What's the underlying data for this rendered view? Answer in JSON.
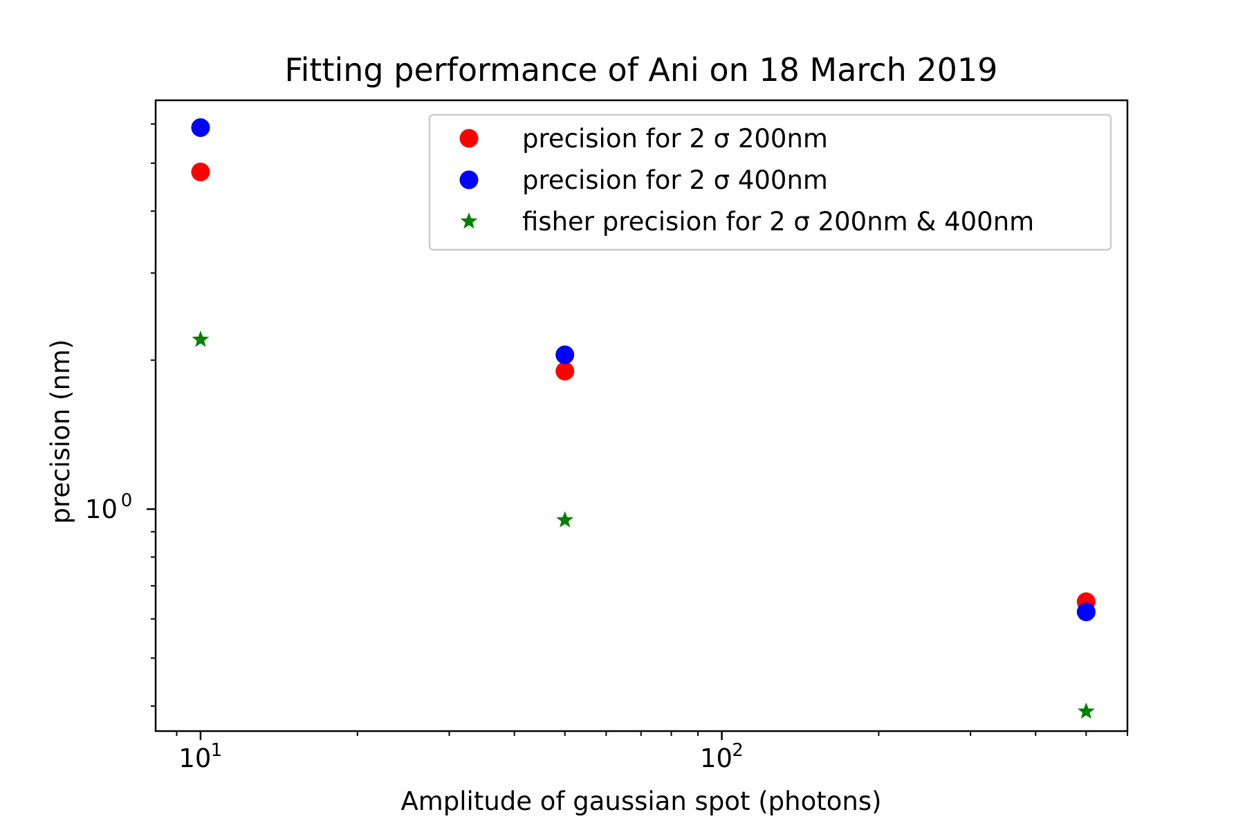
{
  "chart_data": {
    "type": "scatter",
    "title": "Fitting performance of Ani on 18 March 2019",
    "xlabel": "Amplitude of gaussian spot (photons)",
    "ylabel": "precision (nm)",
    "xscale": "log",
    "yscale": "log",
    "xlim": [
      8.2,
      600
    ],
    "ylim": [
      0.356,
      6.7
    ],
    "x_major_ticks": [
      {
        "value": 10,
        "base": "10",
        "exp": "1"
      },
      {
        "value": 100,
        "base": "10",
        "exp": "2"
      }
    ],
    "x_minor_ticks": [
      9,
      20,
      30,
      40,
      50,
      60,
      70,
      80,
      90,
      200,
      300,
      400,
      500,
      600
    ],
    "y_major_ticks": [
      {
        "value": 1,
        "base": "10",
        "exp": "0"
      }
    ],
    "y_minor_ticks": [
      0.4,
      0.5,
      0.6,
      0.7,
      0.8,
      0.9,
      2,
      3,
      4,
      5,
      6
    ],
    "grid": false,
    "legend_position": "top-right",
    "series": [
      {
        "name": "precision for 2 σ 200nm",
        "marker": "circle",
        "color": "#ff0000",
        "x": [
          10,
          50,
          500
        ],
        "y": [
          4.8,
          1.9,
          0.65
        ]
      },
      {
        "name": "precision for 2 σ 400nm",
        "marker": "circle",
        "color": "#0000ff",
        "x": [
          10,
          50,
          500
        ],
        "y": [
          5.9,
          2.05,
          0.62
        ]
      },
      {
        "name": "fisher precision for 2 σ 200nm & 400nm",
        "marker": "star",
        "color": "#008000",
        "x": [
          10,
          50,
          500
        ],
        "y": [
          2.2,
          0.95,
          0.39
        ]
      }
    ]
  }
}
